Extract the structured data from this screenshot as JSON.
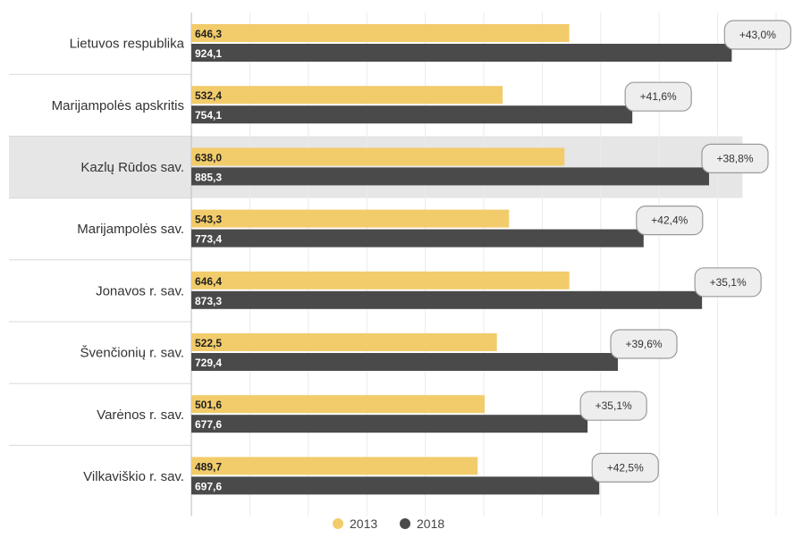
{
  "chart_data": {
    "type": "bar",
    "orientation": "horizontal",
    "categories": [
      "Lietuvos respublika",
      "Marijampolės apskritis",
      "Kazlų Rūdos sav.",
      "Marijampolės sav.",
      "Jonavos r. sav.",
      "Švenčionių r. sav.",
      "Varėnos r. sav.",
      "Vilkaviškio r. sav."
    ],
    "series": [
      {
        "name": "2013",
        "color": "#f2cc6b",
        "values": [
          646.3,
          532.4,
          638.0,
          543.3,
          646.4,
          522.5,
          501.6,
          489.7
        ],
        "labels": [
          "646,3",
          "532,4",
          "638,0",
          "543,3",
          "646,4",
          "522,5",
          "501,6",
          "489,7"
        ]
      },
      {
        "name": "2018",
        "color": "#4a4a4a",
        "values": [
          924.1,
          754.1,
          885.3,
          773.4,
          873.3,
          729.4,
          677.6,
          697.6
        ],
        "labels": [
          "924,1",
          "754,1",
          "885,3",
          "773,4",
          "873,3",
          "729,4",
          "677,6",
          "697,6"
        ]
      }
    ],
    "change_labels": [
      "+43,0%",
      "+41,6%",
      "+38,8%",
      "+42,4%",
      "+35,1%",
      "+39,6%",
      "+35,1%",
      "+42,5%"
    ],
    "highlighted_category": "Kazlų Rūdos sav.",
    "xlim": [
      0,
      1000
    ],
    "grid": true,
    "legend": {
      "position": "bottom-center",
      "entries": [
        "2013",
        "2018"
      ]
    },
    "title": "",
    "xlabel": "",
    "ylabel": ""
  }
}
